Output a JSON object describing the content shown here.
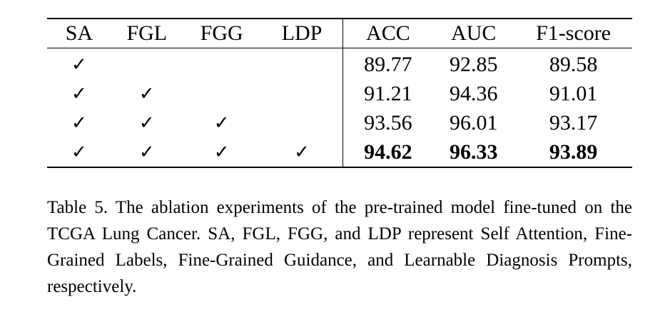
{
  "table": {
    "headers": [
      "SA",
      "FGL",
      "FGG",
      "LDP",
      "ACC",
      "AUC",
      "F1-score"
    ],
    "check_symbol": "✓",
    "rows": [
      {
        "sa": "✓",
        "fgl": "",
        "fgg": "",
        "ldp": "",
        "acc": "89.77",
        "auc": "92.85",
        "f1": "89.58"
      },
      {
        "sa": "✓",
        "fgl": "✓",
        "fgg": "",
        "ldp": "",
        "acc": "91.21",
        "auc": "94.36",
        "f1": "91.01"
      },
      {
        "sa": "✓",
        "fgl": "✓",
        "fgg": "✓",
        "ldp": "",
        "acc": "93.56",
        "auc": "96.01",
        "f1": "93.17"
      },
      {
        "sa": "✓",
        "fgl": "✓",
        "fgg": "✓",
        "ldp": "✓",
        "acc": "94.62",
        "auc": "96.33",
        "f1": "93.89"
      }
    ]
  },
  "caption": {
    "text": "Table 5. The ablation experiments of the pre-trained model fine-tuned on the TCGA Lung Cancer. SA, FGL, FGG, and LDP represent Self Attention, Fine-Grained Labels, Fine-Grained Guidance, and Learnable Diagnosis Prompts, respectively."
  }
}
